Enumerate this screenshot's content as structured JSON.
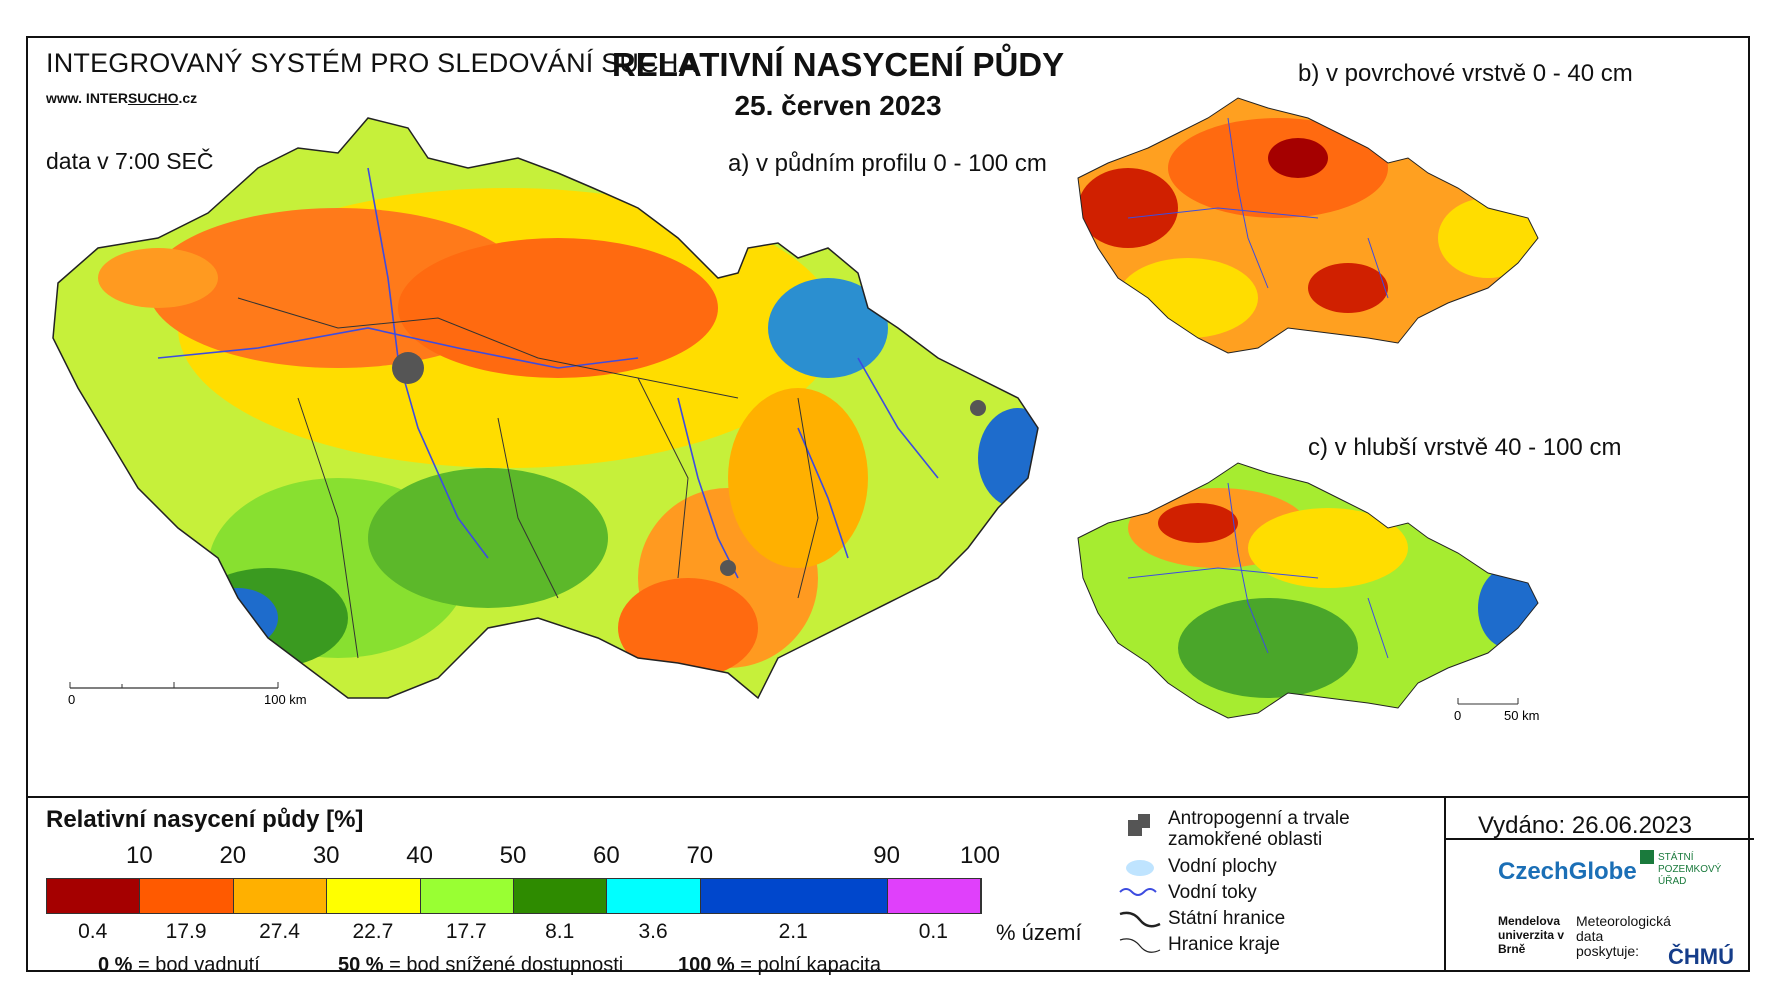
{
  "header": {
    "system_title": "INTEGROVANÝ SYSTÉM PRO SLEDOVÁNÍ SUCHA",
    "website_prefix": "www. INTER",
    "website_underlined": "SUCHO",
    "website_suffix": ".cz",
    "data_time": "data v 7:00 SEČ",
    "main_title": "RELATIVNÍ NASYCENÍ PŮDY",
    "date": "25. červen 2023"
  },
  "maps": {
    "a_label": "a) v půdním profilu 0 - 100 cm",
    "b_label": "b) v povrchové vrstvě 0 - 40 cm",
    "c_label": "c) v hlubší vrstvě 40 - 100 cm",
    "scale_main_zero": "0",
    "scale_main_max": "100 km",
    "scale_small_zero": "0",
    "scale_small_max": "50 km"
  },
  "legend": {
    "title": "Relativní nasycení půdy [%]",
    "thresholds": [
      "10",
      "20",
      "30",
      "40",
      "50",
      "60",
      "70",
      "90",
      "100"
    ],
    "classes": [
      {
        "color": "#a50000",
        "percent": "0.4"
      },
      {
        "color": "#ff5a00",
        "percent": "17.9"
      },
      {
        "color": "#ffb000",
        "percent": "27.4"
      },
      {
        "color": "#ffff00",
        "percent": "22.7"
      },
      {
        "color": "#99ff33",
        "percent": "17.7"
      },
      {
        "color": "#2e8b00",
        "percent": "8.1"
      },
      {
        "color": "#00ffff",
        "percent": "3.6"
      },
      {
        "color": "#0047cc",
        "percent": "2.1"
      },
      {
        "color": "#e040fb",
        "percent": "0.1"
      }
    ],
    "class_widths": [
      10,
      10,
      10,
      10,
      10,
      10,
      10,
      20,
      10
    ],
    "unit": "% území",
    "def1_value": "0 %",
    "def1_text": "= bod vadnutí",
    "def2_value": "50 %",
    "def2_text": "= bod snížené dostupnosti",
    "def3_value": "100 %",
    "def3_text": "= polní kapacita"
  },
  "key": {
    "anthropogenic": "Antropogenní a trvale zamokřené oblasti",
    "water_areas": "Vodní plochy",
    "streams": "Vodní toky",
    "state_border": "Státní hranice",
    "region_border": "Hranice kraje"
  },
  "issued": "Vydáno: 26.06.2023",
  "logos": {
    "czechglobe": "CzechGlobe",
    "spu": "STÁTNÍ POZEMKOVÝ ÚŘAD",
    "mendelu": "Mendelova univerzita v Brně",
    "meteo": "Meteorologická data poskytuje:",
    "chmu": "ČHMÚ"
  }
}
